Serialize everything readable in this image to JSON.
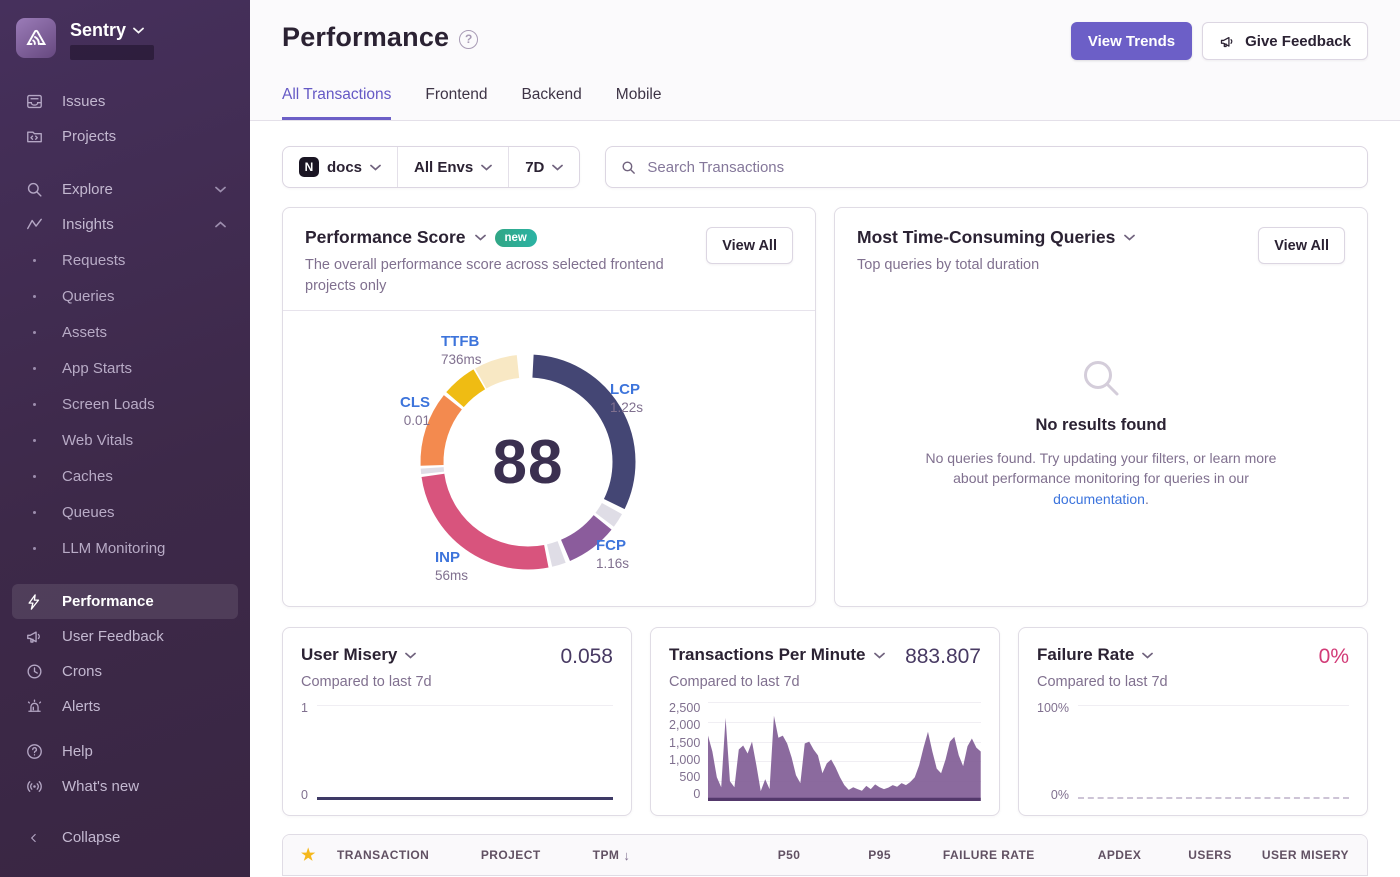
{
  "sidebar": {
    "brand": "Sentry",
    "items": [
      {
        "label": "Issues"
      },
      {
        "label": "Projects"
      },
      {
        "label": "Explore"
      },
      {
        "label": "Insights"
      },
      {
        "label": "Requests"
      },
      {
        "label": "Queries"
      },
      {
        "label": "Assets"
      },
      {
        "label": "App Starts"
      },
      {
        "label": "Screen Loads"
      },
      {
        "label": "Web Vitals"
      },
      {
        "label": "Caches"
      },
      {
        "label": "Queues"
      },
      {
        "label": "LLM Monitoring"
      },
      {
        "label": "Performance",
        "active": true
      },
      {
        "label": "User Feedback"
      },
      {
        "label": "Crons"
      },
      {
        "label": "Alerts"
      },
      {
        "label": "Help"
      },
      {
        "label": "What's new"
      },
      {
        "label": "Collapse"
      }
    ]
  },
  "header": {
    "title": "Performance",
    "view_trends": "View Trends",
    "give_feedback": "Give Feedback",
    "tabs": [
      {
        "label": "All Transactions",
        "active": true
      },
      {
        "label": "Frontend"
      },
      {
        "label": "Backend"
      },
      {
        "label": "Mobile"
      }
    ]
  },
  "filters": {
    "project": "docs",
    "project_icon_letter": "N",
    "environment": "All Envs",
    "period": "7D",
    "search_placeholder": "Search Transactions"
  },
  "cards": {
    "performance_score": {
      "title": "Performance Score",
      "badge": "new",
      "description": "The overall performance score across selected frontend projects only",
      "view_all": "View All",
      "score": "88",
      "vitals": [
        {
          "name": "TTFB",
          "value": "736ms"
        },
        {
          "name": "LCP",
          "value": "1.22s"
        },
        {
          "name": "CLS",
          "value": "0.01"
        },
        {
          "name": "INP",
          "value": "56ms"
        },
        {
          "name": "FCP",
          "value": "1.16s"
        }
      ],
      "donut": {
        "segments": [
          {
            "name": "lcp",
            "color": "#444674",
            "start": 3,
            "end": 116
          },
          {
            "name": "divider-1",
            "color": "#DFDDE6",
            "start": 119,
            "end": 127
          },
          {
            "name": "fcp",
            "color": "#8B5C9C",
            "start": 129,
            "end": 157
          },
          {
            "name": "divider-2",
            "color": "#DFDDE6",
            "start": 159.5,
            "end": 167
          },
          {
            "name": "inp",
            "color": "#D8547D",
            "start": 169,
            "end": 262
          },
          {
            "name": "divider-3",
            "color": "#DFDDE6",
            "start": 263.5,
            "end": 266.5
          },
          {
            "name": "cls",
            "color": "#F38A4F",
            "start": 268,
            "end": 308.5
          },
          {
            "name": "ttfb",
            "color": "#EFBC13",
            "start": 310.5,
            "end": 329.5
          },
          {
            "name": "ttfb-remainder",
            "color": "#F8E8C4",
            "start": 330.5,
            "end": 354
          }
        ]
      }
    },
    "queries": {
      "title": "Most Time-Consuming Queries",
      "subtitle": "Top queries by total duration",
      "view_all": "View All",
      "empty_heading": "No results found",
      "empty_text_before": "No queries found. Try updating your filters, or learn more about performance monitoring for queries in our ",
      "empty_link": "documentation",
      "empty_text_after": "."
    },
    "user_misery": {
      "title": "User Misery",
      "value": "0.058",
      "subtitle": "Compared to last 7d",
      "y_top": "1",
      "y_bottom": "0",
      "chart_data": {
        "type": "line",
        "ylim": [
          0,
          1
        ],
        "series_description": "flat line near 0",
        "approx_value": 0.02
      }
    },
    "transactions_per_minute": {
      "title": "Transactions Per Minute",
      "value": "883.807",
      "subtitle": "Compared to last 7d",
      "yticks": [
        "2,500",
        "2,000",
        "1,500",
        "1,000",
        "500",
        "0"
      ],
      "y_max": 2500,
      "chart_data": {
        "type": "area",
        "ylim": [
          0,
          2500
        ],
        "values": [
          1650,
          1250,
          600,
          350,
          2100,
          500,
          350,
          1300,
          1400,
          1200,
          1500,
          900,
          250,
          550,
          300,
          2150,
          1600,
          1650,
          1450,
          1100,
          650,
          450,
          1450,
          1500,
          1300,
          1150,
          700,
          950,
          1050,
          850,
          600,
          400,
          280,
          350,
          300,
          260,
          380,
          300,
          420,
          350,
          300,
          340,
          400,
          360,
          450,
          400,
          480,
          600,
          900,
          1350,
          1750,
          1250,
          820,
          700,
          1050,
          1500,
          1620,
          1150,
          880,
          1380,
          1580,
          1350,
          1250
        ]
      }
    },
    "failure_rate": {
      "title": "Failure Rate",
      "value": "0%",
      "subtitle": "Compared to last 7d",
      "y_top": "100%",
      "y_bottom": "0%",
      "chart_data": {
        "type": "line",
        "ylim": [
          0,
          100
        ],
        "series_description": "flat line at 0%",
        "approx_value": 0
      }
    }
  },
  "table": {
    "columns": [
      {
        "label": "TRANSACTION"
      },
      {
        "label": "PROJECT"
      },
      {
        "label": "TPM",
        "sorted": "desc"
      },
      {
        "label": "P50"
      },
      {
        "label": "P95"
      },
      {
        "label": "FAILURE RATE"
      },
      {
        "label": "APDEX"
      },
      {
        "label": "USERS"
      },
      {
        "label": "USER MISERY"
      }
    ]
  },
  "colors": {
    "accent_purple": "#6c5fc7",
    "active_tab": "#6559c5",
    "link_blue": "#3c74dd",
    "vital_label_blue": "#3d74db",
    "failure_pink": "#d23b77",
    "tpm_area": "#7E5A94",
    "badge_teal": "#2fae97",
    "star_gold": "#f5b81c",
    "sidebar_bg": "#3d2949"
  }
}
